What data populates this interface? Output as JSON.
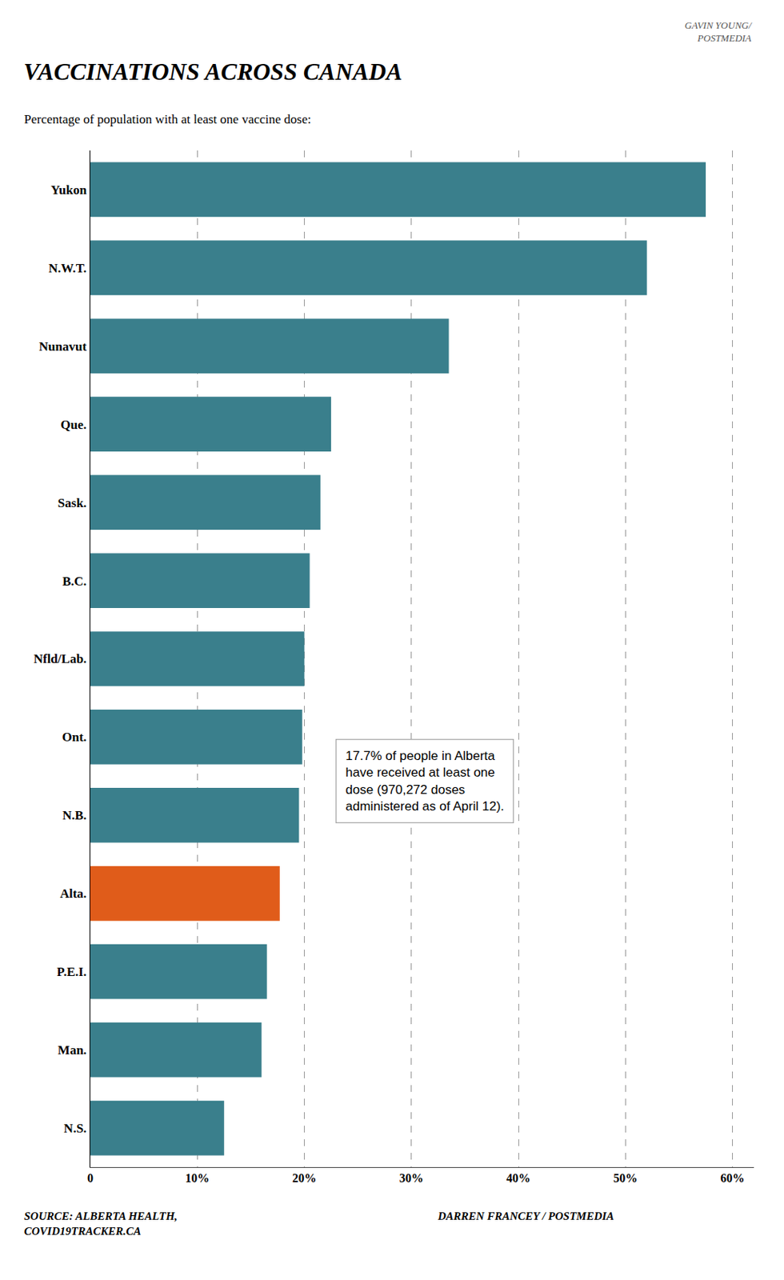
{
  "chart_data": {
    "type": "bar",
    "orientation": "horizontal",
    "title": "VACCINATIONS ACROSS CANADA",
    "subtitle": "Percentage of population with at least one vaccine dose:",
    "categories": [
      "Yukon",
      "N.W.T.",
      "Nunavut",
      "Que.",
      "Sask.",
      "B.C.",
      "Nfld/Lab.",
      "Ont.",
      "N.B.",
      "Alta.",
      "P.E.I.",
      "Man.",
      "N.S."
    ],
    "values": [
      57.5,
      52.0,
      33.5,
      22.5,
      21.5,
      20.5,
      20.0,
      19.8,
      19.5,
      17.7,
      16.5,
      16.0,
      12.5
    ],
    "colors": [
      "#3a7f8c",
      "#3a7f8c",
      "#3a7f8c",
      "#3a7f8c",
      "#3a7f8c",
      "#3a7f8c",
      "#3a7f8c",
      "#3a7f8c",
      "#3a7f8c",
      "#e05c1a",
      "#3a7f8c",
      "#3a7f8c",
      "#3a7f8c"
    ],
    "xlim": [
      0,
      62
    ],
    "xticks": [
      0,
      {
        "value": 10,
        "label": "10%"
      },
      {
        "value": 20,
        "label": "20%"
      },
      {
        "value": 30,
        "label": "30%"
      },
      {
        "value": 40,
        "label": "40%"
      },
      {
        "value": 50,
        "label": "50%"
      },
      {
        "value": 60,
        "label": "60%"
      }
    ],
    "grid": true,
    "annotations": [
      "17.7% of people in Alberta\nhave received at least one\ndose (970,272 doses\nadministered as of April 12).",
      "SOURCE: ALBERTA HEALTH,\nCOVID19TRACKER.CA",
      "DARREN FRANCEY / POSTMEDIA",
      "GAVIN YOUNG/\nPOSTMEDIA"
    ]
  }
}
